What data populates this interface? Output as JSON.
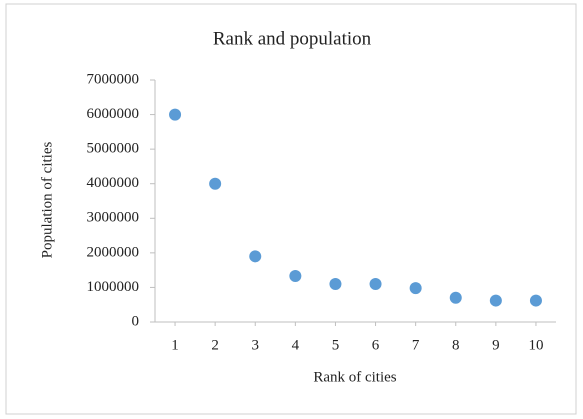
{
  "chart_data": {
    "type": "scatter",
    "title": "Rank and population",
    "x_label": "Rank of cities",
    "y_label": "Population of cities",
    "x": [
      1,
      2,
      3,
      4,
      5,
      6,
      7,
      8,
      9,
      10
    ],
    "values": [
      6000000,
      4000000,
      1900000,
      1330000,
      1100000,
      1100000,
      980000,
      700000,
      620000,
      620000
    ],
    "color": "#5b9bd5",
    "xlim": [
      0.5,
      10.5
    ],
    "xticks": [
      1,
      2,
      3,
      4,
      5,
      6,
      7,
      8,
      9,
      10
    ],
    "ylim": [
      0,
      7000000
    ],
    "yticks": [
      0,
      1000000,
      2000000,
      3000000,
      4000000,
      5000000,
      6000000,
      7000000
    ],
    "grid": false
  }
}
